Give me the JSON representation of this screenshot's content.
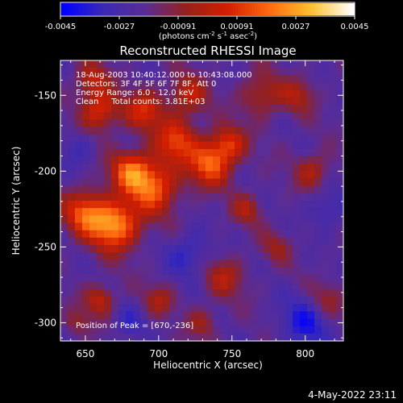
{
  "chart_data": {
    "type": "heatmap",
    "title": "Reconstructed RHESSI Image",
    "xlabel": "Heliocentric X (arcsec)",
    "ylabel": "Heliocentric Y (arcsec)",
    "xlim": [
      633,
      826
    ],
    "ylim": [
      -312,
      -127
    ],
    "xticks": [
      650,
      700,
      750,
      800
    ],
    "yticks": [
      -150,
      -200,
      -250,
      -300
    ],
    "colorbar": {
      "range": [
        -0.0045,
        0.0045
      ],
      "ticks": [
        "-0.0045",
        "-0.0027",
        "-0.00091",
        "0.00091",
        "0.0027",
        "0.0045"
      ],
      "unit_label": {
        "prefix": "(photons cm",
        "exp1": "-2",
        "mid1": " s",
        "exp2": "-1",
        "mid2": " asec",
        "exp3": "-2",
        "suffix": ")"
      },
      "colormap": [
        "#0000ff",
        "#3a2ab4",
        "#5a2c96",
        "#96201a",
        "#d41e00",
        "#ff6a10",
        "#ffc030",
        "#ffffff"
      ]
    },
    "annotations": [
      "18-Aug-2003 10:40:12.000 to 10:43:08.000",
      "Detectors: 3F 4F 5F 6F 7F 8F, Att 0",
      "Energy Range: 6.0 - 12.0 keV",
      "Clean     Total counts: 3.81E+03"
    ],
    "peak_label": "Position of Peak = [670,-236]",
    "peak": [
      670,
      -236
    ],
    "blobs": [
      {
        "x": 670,
        "y": -236,
        "amp": 0.0045,
        "s": 11
      },
      {
        "x": 650,
        "y": -228,
        "amp": 0.0034,
        "s": 10
      },
      {
        "x": 695,
        "y": -210,
        "amp": 0.0038,
        "s": 12
      },
      {
        "x": 680,
        "y": -200,
        "amp": 0.003,
        "s": 9
      },
      {
        "x": 735,
        "y": -195,
        "amp": 0.0036,
        "s": 10
      },
      {
        "x": 748,
        "y": -182,
        "amp": 0.0026,
        "s": 8
      },
      {
        "x": 712,
        "y": -180,
        "amp": 0.003,
        "s": 10
      },
      {
        "x": 690,
        "y": -160,
        "amp": 0.0026,
        "s": 9
      },
      {
        "x": 720,
        "y": -150,
        "amp": 0.0022,
        "s": 9
      },
      {
        "x": 660,
        "y": -160,
        "amp": 0.0028,
        "s": 9
      },
      {
        "x": 655,
        "y": -140,
        "amp": 0.002,
        "s": 8
      },
      {
        "x": 770,
        "y": -150,
        "amp": 0.0018,
        "s": 10
      },
      {
        "x": 795,
        "y": -150,
        "amp": 0.0016,
        "s": 8
      },
      {
        "x": 805,
        "y": -200,
        "amp": 0.0018,
        "s": 8
      },
      {
        "x": 760,
        "y": -225,
        "amp": 0.0016,
        "s": 7
      },
      {
        "x": 745,
        "y": -270,
        "amp": 0.0018,
        "s": 9
      },
      {
        "x": 780,
        "y": -250,
        "amp": 0.0012,
        "s": 7
      },
      {
        "x": 660,
        "y": -285,
        "amp": 0.0022,
        "s": 7
      },
      {
        "x": 700,
        "y": -285,
        "amp": 0.0016,
        "s": 7
      },
      {
        "x": 730,
        "y": -300,
        "amp": 0.0014,
        "s": 7
      },
      {
        "x": 815,
        "y": -285,
        "amp": 0.0014,
        "s": 8
      },
      {
        "x": 645,
        "y": -300,
        "amp": 0.0012,
        "s": 6
      },
      {
        "x": 720,
        "y": -255,
        "amp": -0.0015,
        "s": 10
      },
      {
        "x": 800,
        "y": -300,
        "amp": -0.0018,
        "s": 12
      },
      {
        "x": 680,
        "y": -300,
        "amp": -0.001,
        "s": 8
      },
      {
        "x": 815,
        "y": -225,
        "amp": -0.0012,
        "s": 9
      },
      {
        "x": 645,
        "y": -185,
        "amp": -0.001,
        "s": 8
      }
    ]
  },
  "footer": {
    "date": "4-May-2022 23:11"
  }
}
